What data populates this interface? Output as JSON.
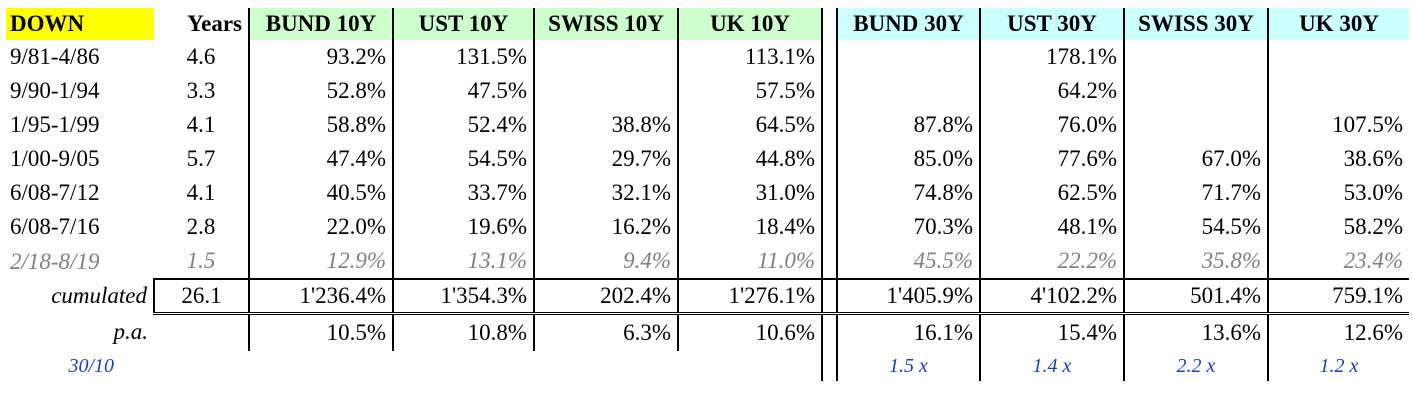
{
  "header": {
    "down": "DOWN",
    "years": "Years",
    "columns": [
      "BUND 10Y",
      "UST 10Y",
      "SWISS 10Y",
      "UK 10Y",
      "BUND 30Y",
      "UST 30Y",
      "SWISS 30Y",
      "UK 30Y"
    ]
  },
  "rows": [
    {
      "period": "9/81-4/86",
      "years": "4.6",
      "values": [
        "93.2%",
        "131.5%",
        "",
        "113.1%",
        "",
        "178.1%",
        "",
        ""
      ]
    },
    {
      "period": "9/90-1/94",
      "years": "3.3",
      "values": [
        "52.8%",
        "47.5%",
        "",
        "57.5%",
        "",
        "64.2%",
        "",
        ""
      ]
    },
    {
      "period": "1/95-1/99",
      "years": "4.1",
      "values": [
        "58.8%",
        "52.4%",
        "38.8%",
        "64.5%",
        "87.8%",
        "76.0%",
        "",
        "107.5%"
      ]
    },
    {
      "period": "1/00-9/05",
      "years": "5.7",
      "values": [
        "47.4%",
        "54.5%",
        "29.7%",
        "44.8%",
        "85.0%",
        "77.6%",
        "67.0%",
        "38.6%"
      ]
    },
    {
      "period": "6/08-7/12",
      "years": "4.1",
      "values": [
        "40.5%",
        "33.7%",
        "32.1%",
        "31.0%",
        "74.8%",
        "62.5%",
        "71.7%",
        "53.0%"
      ]
    },
    {
      "period": "6/08-7/16",
      "years": "2.8",
      "values": [
        "22.0%",
        "19.6%",
        "16.2%",
        "18.4%",
        "70.3%",
        "48.1%",
        "54.5%",
        "58.2%"
      ]
    },
    {
      "period": "2/18-8/19",
      "years": "1.5",
      "values": [
        "12.9%",
        "13.1%",
        "9.4%",
        "11.0%",
        "45.5%",
        "22.2%",
        "35.8%",
        "23.4%"
      ]
    }
  ],
  "cumulated": {
    "label": "cumulated",
    "years": "26.1",
    "values": [
      "1'236.4%",
      "1'354.3%",
      "202.4%",
      "1'276.1%",
      "1'405.9%",
      "4'102.2%",
      "501.4%",
      "759.1%"
    ]
  },
  "pa": {
    "label": "p.a.",
    "values": [
      "10.5%",
      "10.8%",
      "6.3%",
      "10.6%",
      "16.1%",
      "15.4%",
      "13.6%",
      "12.6%"
    ]
  },
  "ratio": {
    "label": "30/10",
    "values": [
      "1.5 x",
      "1.4 x",
      "2.2 x",
      "1.2 x"
    ]
  },
  "colors": {
    "down_header": "#ffff00",
    "ten_year_header": "#ccffcc",
    "thirty_year_header": "#ccffff",
    "grey_row": "#808080",
    "ratio_text": "#1f3fb0"
  }
}
